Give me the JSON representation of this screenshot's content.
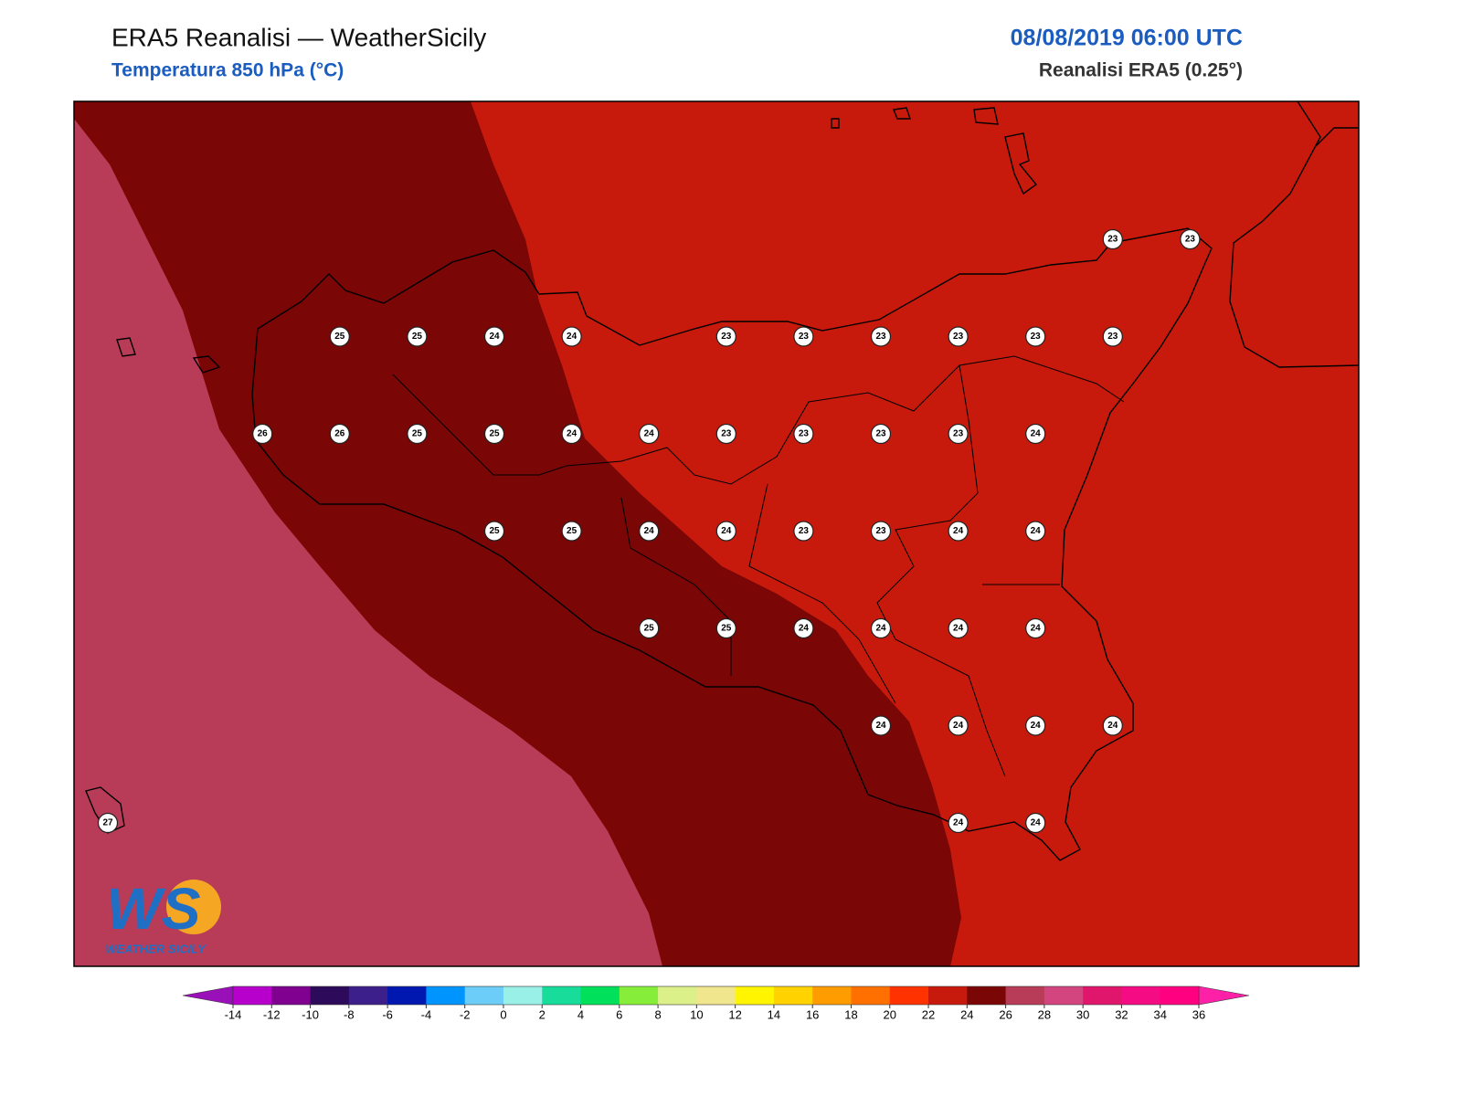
{
  "header": {
    "title": "ERA5 Reanalisi — WeatherSicily",
    "subtitle": "Temperatura 850 hPa (°C)",
    "valid_time": "08/08/2019 06:00 UTC",
    "source": "Reanalisi ERA5 (0.25°)"
  },
  "map": {
    "grid_values": [
      [
        null,
        null,
        null,
        null,
        null,
        null,
        null,
        null,
        null,
        null,
        null,
        null,
        null,
        23,
        23
      ],
      [
        null,
        null,
        null,
        25,
        25,
        24,
        24,
        null,
        23,
        23,
        23,
        23,
        23,
        23,
        null
      ],
      [
        null,
        null,
        26,
        26,
        25,
        25,
        24,
        24,
        23,
        23,
        23,
        23,
        24,
        null,
        null
      ],
      [
        null,
        null,
        null,
        null,
        null,
        25,
        25,
        24,
        24,
        23,
        23,
        24,
        24,
        null,
        null
      ],
      [
        null,
        null,
        null,
        null,
        null,
        null,
        null,
        25,
        25,
        24,
        24,
        24,
        24,
        null,
        null
      ],
      [
        null,
        null,
        null,
        null,
        null,
        null,
        null,
        null,
        null,
        null,
        24,
        24,
        24,
        24,
        null
      ],
      [
        27,
        null,
        null,
        null,
        null,
        null,
        null,
        null,
        null,
        null,
        null,
        24,
        24,
        null,
        null
      ]
    ]
  },
  "colorbar": {
    "ticks": [
      -14,
      -12,
      -10,
      -8,
      -6,
      -4,
      -2,
      0,
      2,
      4,
      6,
      8,
      10,
      12,
      14,
      16,
      18,
      20,
      22,
      24,
      26,
      28,
      30,
      32,
      34,
      36
    ],
    "colors": [
      "#9a10b8",
      "#b800cc",
      "#800090",
      "#2e0a5a",
      "#3c1f8a",
      "#0018b0",
      "#0094ff",
      "#6ccef8",
      "#98f0e6",
      "#18dc9a",
      "#00e05a",
      "#86ee3a",
      "#dcf08a",
      "#f0e68e",
      "#fff500",
      "#ffd200",
      "#ff9c00",
      "#ff7000",
      "#ff3200",
      "#c81a0c",
      "#7a0606",
      "#b83c58",
      "#d2457e",
      "#e0166c",
      "#f50c84",
      "#ff0080",
      "#ff20a8"
    ]
  },
  "logo": {
    "text": "WS",
    "caption": "WEATHER SICILY"
  }
}
